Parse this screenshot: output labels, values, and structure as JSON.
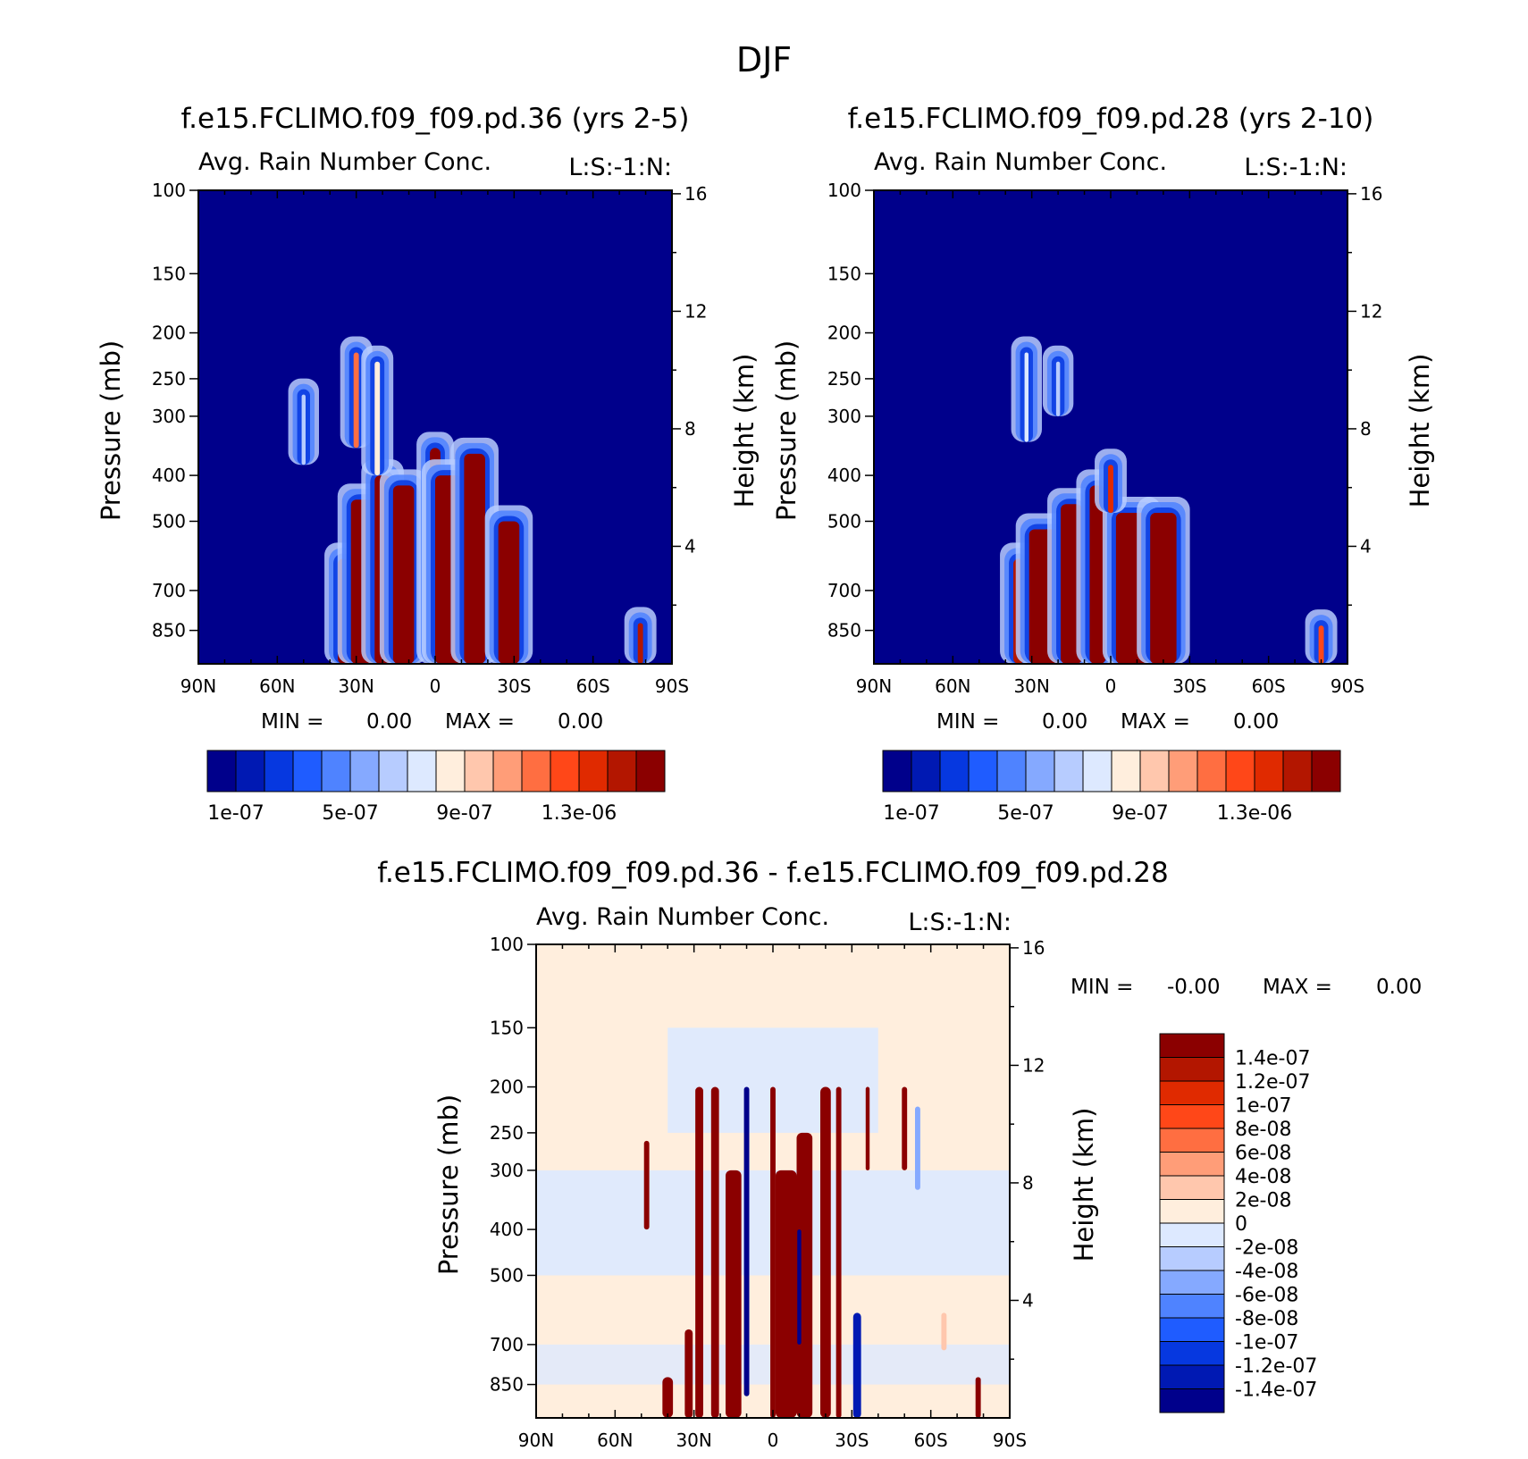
{
  "figure_title": "DJF",
  "chart_data": [
    {
      "type": "heatmap",
      "title": "f.e15.FCLIMO.f09_f09.pd.36 (yrs 2-5)",
      "subtitle_left": "Avg. Rain Number Conc.",
      "subtitle_right": "L:S:-1:N:",
      "xlabel": "",
      "ylabel": "Pressure (mb)",
      "ylabel_right": "Height (km)",
      "x_ticks": [
        "90N",
        "60N",
        "30N",
        "0",
        "30S",
        "60S",
        "90S"
      ],
      "y_ticks": [
        "100",
        "150",
        "200",
        "250",
        "300",
        "400",
        "500",
        "700",
        "850"
      ],
      "y_ticks_right": [
        "16",
        "12",
        "8",
        "4"
      ],
      "xlim": [
        90,
        -90
      ],
      "ylim_mb": [
        100,
        1000
      ],
      "min_label": "MIN =",
      "min_value": "0.00",
      "max_label": "MAX =",
      "max_value": "0.00",
      "colorbar": {
        "orientation": "horizontal",
        "colors": [
          "#00008b",
          "#0019b3",
          "#0638e0",
          "#1f5cff",
          "#4f83ff",
          "#85a9ff",
          "#b7ccff",
          "#dde9ff",
          "#ffeedd",
          "#ffc7ad",
          "#ff9d78",
          "#ff6e41",
          "#ff4718",
          "#e02a00",
          "#b31600",
          "#8b0000"
        ],
        "tick_labels": [
          "1e-07",
          "5e-07",
          "9e-07",
          "1.3e-06"
        ]
      },
      "features": [
        {
          "lat": 35,
          "p_top": 600,
          "p_bot": 1000,
          "width": 4,
          "level": 15
        },
        {
          "lat": 26,
          "p_top": 450,
          "p_bot": 1000,
          "width": 12,
          "level": 15
        },
        {
          "lat": 20,
          "p_top": 400,
          "p_bot": 1000,
          "width": 6,
          "level": 15
        },
        {
          "lat": 12,
          "p_top": 420,
          "p_bot": 1000,
          "width": 8,
          "level": 15
        },
        {
          "lat": 0,
          "p_top": 350,
          "p_bot": 1000,
          "width": 4,
          "level": 15
        },
        {
          "lat": -5,
          "p_top": 400,
          "p_bot": 1000,
          "width": 10,
          "level": 15
        },
        {
          "lat": -15,
          "p_top": 360,
          "p_bot": 1000,
          "width": 8,
          "level": 15
        },
        {
          "lat": -28,
          "p_top": 500,
          "p_bot": 1000,
          "width": 8,
          "level": 15
        },
        {
          "lat": 30,
          "p_top": 220,
          "p_bot": 350,
          "width": 2,
          "level": 11
        },
        {
          "lat": 22,
          "p_top": 230,
          "p_bot": 400,
          "width": 2,
          "level": 8
        },
        {
          "lat": 50,
          "p_top": 270,
          "p_bot": 380,
          "width": 1.5,
          "level": 6
        },
        {
          "lat": -78,
          "p_top": 820,
          "p_bot": 1000,
          "width": 2,
          "level": 14
        }
      ]
    },
    {
      "type": "heatmap",
      "title": "f.e15.FCLIMO.f09_f09.pd.28 (yrs 2-10)",
      "subtitle_left": "Avg. Rain Number Conc.",
      "subtitle_right": "L:S:-1:N:",
      "xlabel": "",
      "ylabel": "Pressure (mb)",
      "ylabel_right": "Height (km)",
      "x_ticks": [
        "90N",
        "60N",
        "30N",
        "0",
        "30S",
        "60S",
        "90S"
      ],
      "y_ticks": [
        "100",
        "150",
        "200",
        "250",
        "300",
        "400",
        "500",
        "700",
        "850"
      ],
      "y_ticks_right": [
        "16",
        "12",
        "8",
        "4"
      ],
      "xlim": [
        90,
        -90
      ],
      "ylim_mb": [
        100,
        1000
      ],
      "min_label": "MIN =",
      "min_value": "0.00",
      "max_label": "MAX =",
      "max_value": "0.00",
      "colorbar": {
        "orientation": "horizontal",
        "colors": [
          "#00008b",
          "#0019b3",
          "#0638e0",
          "#1f5cff",
          "#4f83ff",
          "#85a9ff",
          "#b7ccff",
          "#dde9ff",
          "#ffeedd",
          "#ffc7ad",
          "#ff9d78",
          "#ff6e41",
          "#ff4718",
          "#e02a00",
          "#b31600",
          "#8b0000"
        ],
        "tick_labels": [
          "1e-07",
          "5e-07",
          "9e-07",
          "1.3e-06"
        ]
      },
      "features": [
        {
          "lat": 35,
          "p_top": 600,
          "p_bot": 1000,
          "width": 4,
          "level": 14
        },
        {
          "lat": 25,
          "p_top": 520,
          "p_bot": 1000,
          "width": 12,
          "level": 15
        },
        {
          "lat": 15,
          "p_top": 460,
          "p_bot": 1000,
          "width": 8,
          "level": 15
        },
        {
          "lat": 5,
          "p_top": 420,
          "p_bot": 1000,
          "width": 6,
          "level": 15
        },
        {
          "lat": -8,
          "p_top": 480,
          "p_bot": 1000,
          "width": 12,
          "level": 15
        },
        {
          "lat": -20,
          "p_top": 480,
          "p_bot": 1000,
          "width": 10,
          "level": 15
        },
        {
          "lat": 0,
          "p_top": 380,
          "p_bot": 480,
          "width": 2,
          "level": 13
        },
        {
          "lat": 32,
          "p_top": 220,
          "p_bot": 340,
          "width": 1.5,
          "level": 7
        },
        {
          "lat": 20,
          "p_top": 230,
          "p_bot": 300,
          "width": 1.5,
          "level": 6
        },
        {
          "lat": -80,
          "p_top": 830,
          "p_bot": 1000,
          "width": 2,
          "level": 12
        }
      ]
    },
    {
      "type": "heatmap",
      "title": "f.e15.FCLIMO.f09_f09.pd.36 - f.e15.FCLIMO.f09_f09.pd.28",
      "subtitle_left": "Avg. Rain Number Conc.",
      "subtitle_right": "L:S:-1:N:",
      "xlabel": "",
      "ylabel": "Pressure (mb)",
      "ylabel_right": "Height (km)",
      "x_ticks": [
        "90N",
        "60N",
        "30N",
        "0",
        "30S",
        "60S",
        "90S"
      ],
      "y_ticks": [
        "100",
        "150",
        "200",
        "250",
        "300",
        "400",
        "500",
        "700",
        "850"
      ],
      "y_ticks_right": [
        "16",
        "12",
        "8",
        "4"
      ],
      "xlim": [
        90,
        -90
      ],
      "ylim_mb": [
        100,
        1000
      ],
      "min_label": "MIN =",
      "min_value": "-0.00",
      "max_label": "MAX =",
      "max_value": "0.00",
      "colorbar": {
        "orientation": "vertical",
        "colors": [
          "#00008b",
          "#0019b3",
          "#0638e0",
          "#1f5cff",
          "#4f83ff",
          "#85a9ff",
          "#b7ccff",
          "#dde9ff",
          "#ffeedd",
          "#ffc7ad",
          "#ff9d78",
          "#ff6e41",
          "#ff4718",
          "#e02a00",
          "#b31600",
          "#8b0000"
        ],
        "tick_labels": [
          "-1.4e-07",
          "-1.2e-07",
          "-1e-07",
          "-8e-08",
          "-6e-08",
          "-4e-08",
          "-2e-08",
          "0",
          "2e-08",
          "4e-08",
          "6e-08",
          "8e-08",
          "1e-07",
          "1.2e-07",
          "1.4e-07"
        ]
      },
      "features": [
        {
          "lat": 40,
          "p_top": 820,
          "p_bot": 1000,
          "width": 4,
          "level": 15
        },
        {
          "lat": 32,
          "p_top": 650,
          "p_bot": 1000,
          "width": 3,
          "level": 15
        },
        {
          "lat": 28,
          "p_top": 200,
          "p_bot": 1000,
          "width": 3,
          "level": 15
        },
        {
          "lat": 22,
          "p_top": 200,
          "p_bot": 1000,
          "width": 3,
          "level": 15
        },
        {
          "lat": 15,
          "p_top": 300,
          "p_bot": 1000,
          "width": 6,
          "level": 15
        },
        {
          "lat": 10,
          "p_top": 200,
          "p_bot": 900,
          "width": 2,
          "level": 0
        },
        {
          "lat": 0,
          "p_top": 200,
          "p_bot": 1000,
          "width": 2,
          "level": 15
        },
        {
          "lat": -5,
          "p_top": 300,
          "p_bot": 1000,
          "width": 8,
          "level": 15
        },
        {
          "lat": -12,
          "p_top": 250,
          "p_bot": 1000,
          "width": 6,
          "level": 15
        },
        {
          "lat": -10,
          "p_top": 400,
          "p_bot": 700,
          "width": 1.5,
          "level": 0
        },
        {
          "lat": -20,
          "p_top": 200,
          "p_bot": 1000,
          "width": 4,
          "level": 15
        },
        {
          "lat": -25,
          "p_top": 200,
          "p_bot": 1000,
          "width": 2,
          "level": 15
        },
        {
          "lat": -32,
          "p_top": 600,
          "p_bot": 1000,
          "width": 3,
          "level": 1
        },
        {
          "lat": -36,
          "p_top": 200,
          "p_bot": 300,
          "width": 1.5,
          "level": 15
        },
        {
          "lat": 48,
          "p_top": 260,
          "p_bot": 400,
          "width": 2,
          "level": 15
        },
        {
          "lat": -50,
          "p_top": 200,
          "p_bot": 300,
          "width": 2,
          "level": 15
        },
        {
          "lat": -55,
          "p_top": 220,
          "p_bot": 330,
          "width": 2,
          "level": 5
        },
        {
          "lat": -78,
          "p_top": 820,
          "p_bot": 1000,
          "width": 2,
          "level": 15
        },
        {
          "lat": -65,
          "p_top": 600,
          "p_bot": 720,
          "width": 2,
          "level": 9
        }
      ]
    }
  ]
}
